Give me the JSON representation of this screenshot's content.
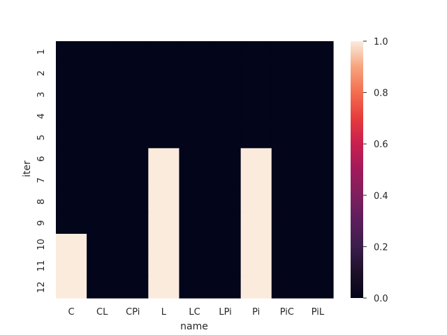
{
  "chart_data": {
    "type": "heatmap",
    "title": "",
    "xlabel": "name",
    "ylabel": "iter",
    "x": [
      "C",
      "CL",
      "CPi",
      "L",
      "LC",
      "LPi",
      "Pi",
      "PiC",
      "PiL"
    ],
    "y": [
      "1",
      "2",
      "3",
      "4",
      "5",
      "6",
      "7",
      "8",
      "9",
      "10",
      "11",
      "12"
    ],
    "values": [
      [
        0,
        0,
        0,
        0,
        0,
        0,
        0,
        0,
        0
      ],
      [
        0,
        0,
        0,
        0,
        0,
        0,
        0,
        0,
        0
      ],
      [
        0,
        0,
        0,
        0,
        0,
        0,
        0,
        0,
        0
      ],
      [
        0,
        0,
        0,
        0,
        0,
        0,
        0,
        0,
        0
      ],
      [
        0,
        0,
        0,
        0,
        0,
        0,
        0,
        0,
        0
      ],
      [
        0,
        0,
        0,
        1,
        0,
        0,
        1,
        0,
        0
      ],
      [
        0,
        0,
        0,
        1,
        0,
        0,
        1,
        0,
        0
      ],
      [
        0,
        0,
        0,
        1,
        0,
        0,
        1,
        0,
        0
      ],
      [
        0,
        0,
        0,
        1,
        0,
        0,
        1,
        0,
        0
      ],
      [
        1,
        0,
        0,
        1,
        0,
        0,
        1,
        0,
        0
      ],
      [
        1,
        0,
        0,
        1,
        0,
        0,
        1,
        0,
        0
      ],
      [
        1,
        0,
        0,
        1,
        0,
        0,
        1,
        0,
        0
      ]
    ],
    "colorbar": {
      "range": [
        0.0,
        1.0
      ],
      "ticks": [
        "0.0",
        "0.2",
        "0.4",
        "0.6",
        "0.8",
        "1.0"
      ],
      "colormap": "rocket",
      "low_color": "#03051a",
      "high_color": "#faebdd"
    },
    "grid": false
  }
}
